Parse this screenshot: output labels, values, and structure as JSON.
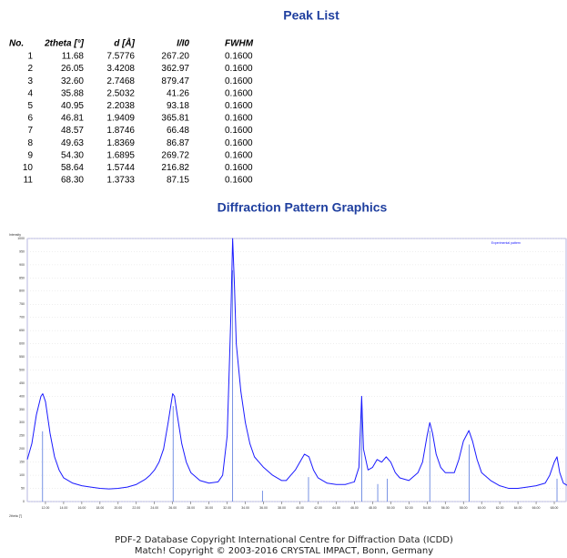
{
  "peak_list": {
    "title": "Peak List",
    "columns": [
      "No.",
      "2theta [°]",
      "d [Å]",
      "I/I0",
      "FWHM"
    ],
    "rows": [
      [
        "1",
        "11.68",
        "7.5776",
        "267.20",
        "0.1600"
      ],
      [
        "2",
        "26.05",
        "3.4208",
        "362.97",
        "0.1600"
      ],
      [
        "3",
        "32.60",
        "2.7468",
        "879.47",
        "0.1600"
      ],
      [
        "4",
        "35.88",
        "2.5032",
        "41.26",
        "0.1600"
      ],
      [
        "5",
        "40.95",
        "2.2038",
        "93.18",
        "0.1600"
      ],
      [
        "6",
        "46.81",
        "1.9409",
        "365.81",
        "0.1600"
      ],
      [
        "7",
        "48.57",
        "1.8746",
        "66.48",
        "0.1600"
      ],
      [
        "8",
        "49.63",
        "1.8369",
        "86.87",
        "0.1600"
      ],
      [
        "9",
        "54.30",
        "1.6895",
        "269.72",
        "0.1600"
      ],
      [
        "10",
        "58.64",
        "1.5744",
        "216.82",
        "0.1600"
      ],
      [
        "11",
        "68.30",
        "1.3733",
        "87.15",
        "0.1600"
      ]
    ]
  },
  "chart_data": {
    "type": "line",
    "title": "Diffraction Pattern Graphics",
    "y_label": "Intensity",
    "x_label": "2theta [°]",
    "x": [
      10,
      10.5,
      11,
      11.5,
      11.7,
      12,
      12.5,
      13,
      13.5,
      14,
      15,
      16,
      17,
      18,
      19,
      20,
      21,
      22,
      23,
      23.5,
      24,
      24.5,
      25,
      25.5,
      26,
      26.2,
      26.5,
      27,
      27.5,
      28,
      29,
      30,
      31,
      31.5,
      32,
      32.4,
      32.6,
      32.8,
      33,
      33.5,
      34,
      34.5,
      35,
      35.5,
      36,
      37,
      38,
      38.5,
      39,
      39.5,
      40,
      40.5,
      41,
      41.5,
      42,
      43,
      44,
      45,
      46,
      46.5,
      46.8,
      47,
      47.5,
      48,
      48.5,
      49,
      49.5,
      50,
      50.5,
      51,
      52,
      53,
      53.5,
      54,
      54.3,
      54.6,
      55,
      55.5,
      56,
      57,
      57.5,
      58,
      58.6,
      59,
      59.5,
      60,
      61,
      62,
      63,
      64,
      65,
      66,
      67,
      67.5,
      68,
      68.3,
      68.6,
      69,
      69.5
    ],
    "series": [
      {
        "name": "Experimental pattern",
        "color": "#1a1aff",
        "values": [
          160,
          220,
          330,
          400,
          410,
          380,
          260,
          170,
          120,
          90,
          70,
          60,
          55,
          50,
          48,
          50,
          55,
          65,
          85,
          100,
          120,
          150,
          200,
          300,
          410,
          400,
          330,
          220,
          150,
          110,
          80,
          70,
          75,
          100,
          250,
          700,
          1000,
          820,
          600,
          420,
          300,
          220,
          170,
          150,
          130,
          100,
          80,
          80,
          100,
          120,
          150,
          180,
          170,
          120,
          90,
          70,
          65,
          65,
          75,
          130,
          400,
          200,
          120,
          130,
          160,
          150,
          170,
          150,
          110,
          90,
          80,
          110,
          150,
          250,
          300,
          260,
          180,
          130,
          110,
          110,
          160,
          230,
          270,
          230,
          160,
          110,
          80,
          60,
          50,
          50,
          55,
          60,
          70,
          100,
          150,
          170,
          110,
          70,
          60
        ]
      }
    ],
    "peaks": {
      "color": "#5577dd",
      "x": [
        11.68,
        26.05,
        32.6,
        35.88,
        40.95,
        46.81,
        48.57,
        49.63,
        54.3,
        58.64,
        68.3
      ],
      "values": [
        267.2,
        362.97,
        879.47,
        41.26,
        93.18,
        365.81,
        66.48,
        86.87,
        269.72,
        216.82,
        87.15
      ]
    },
    "xlim": [
      10,
      69.3
    ],
    "ylim": [
      0,
      1000
    ],
    "xticks": [
      {
        "value": 12,
        "label": "12.00"
      },
      {
        "value": 14,
        "label": "14.00"
      },
      {
        "value": 16,
        "label": "16.00"
      },
      {
        "value": 18,
        "label": "18.00"
      },
      {
        "value": 20,
        "label": "20.00"
      },
      {
        "value": 22,
        "label": "22.00"
      },
      {
        "value": 24,
        "label": "24.00"
      },
      {
        "value": 26,
        "label": "26.00"
      },
      {
        "value": 28,
        "label": "28.00"
      },
      {
        "value": 30,
        "label": "30.00"
      },
      {
        "value": 32,
        "label": "32.00"
      },
      {
        "value": 34,
        "label": "34.00"
      },
      {
        "value": 36,
        "label": "36.00"
      },
      {
        "value": 38,
        "label": "38.00"
      },
      {
        "value": 40,
        "label": "40.00"
      },
      {
        "value": 42,
        "label": "42.00"
      },
      {
        "value": 44,
        "label": "44.00"
      },
      {
        "value": 46,
        "label": "46.00"
      },
      {
        "value": 48,
        "label": "48.00"
      },
      {
        "value": 50,
        "label": "50.00"
      },
      {
        "value": 52,
        "label": "52.00"
      },
      {
        "value": 54,
        "label": "54.00"
      },
      {
        "value": 56,
        "label": "56.00"
      },
      {
        "value": 58,
        "label": "58.00"
      },
      {
        "value": 60,
        "label": "60.00"
      },
      {
        "value": 62,
        "label": "62.00"
      },
      {
        "value": 64,
        "label": "64.00"
      },
      {
        "value": 66,
        "label": "66.00"
      },
      {
        "value": 68,
        "label": "68.00"
      }
    ],
    "yticks": [
      0,
      50,
      100,
      150,
      200,
      250,
      300,
      350,
      400,
      450,
      500,
      550,
      600,
      650,
      700,
      750,
      800,
      850,
      900,
      950,
      1000
    ],
    "grid": true,
    "legend": "top-right"
  },
  "footer": [
    "PDF-2 Database Copyright International Centre for Diffraction Data (ICDD)",
    "Match! Copyright © 2003-2016 CRYSTAL IMPACT, Bonn, Germany"
  ]
}
